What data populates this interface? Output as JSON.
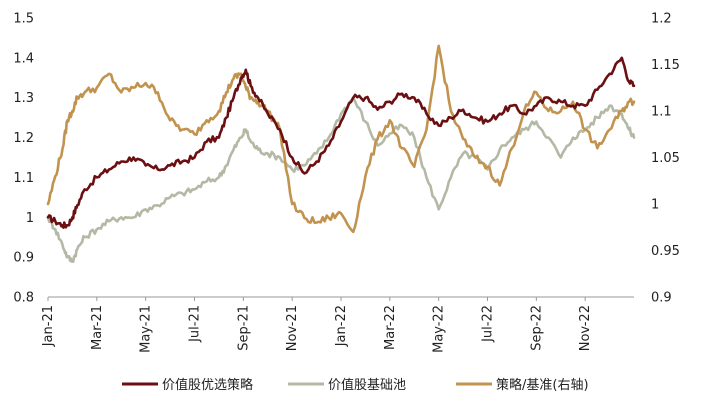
{
  "chart_data": {
    "type": "line",
    "title": "",
    "xlabel": "",
    "ylabel": "",
    "ylim_left": [
      0.8,
      1.5
    ],
    "ylim_right": [
      0.9,
      1.2
    ],
    "yticks_left": [
      "0.8",
      "0.9",
      "1",
      "1.1",
      "1.2",
      "1.3",
      "1.4",
      "1.5"
    ],
    "yticks_right": [
      "0.9",
      "0.95",
      "1",
      "1.05",
      "1.1",
      "1.15",
      "1.2"
    ],
    "x_tick_labels": [
      "Jan-21",
      "Mar-21",
      "May-21",
      "Jul-21",
      "Sep-21",
      "Nov-21",
      "Jan-22",
      "Mar-22",
      "May-22",
      "Jul-22",
      "Sep-22",
      "Nov-22"
    ],
    "x_range_months": [
      0,
      24
    ],
    "grid": false,
    "legend_position": "bottom-center",
    "series": [
      {
        "name": "价值股优选策略",
        "axis": "left",
        "color": "#6b0f12",
        "x": [
          0,
          0.3,
          0.6,
          0.8,
          1.0,
          1.2,
          1.5,
          2.0,
          2.5,
          3.0,
          3.5,
          4.0,
          4.5,
          5.0,
          5.5,
          6.0,
          6.5,
          7.0,
          7.3,
          7.6,
          7.9,
          8.1,
          8.3,
          8.6,
          9.0,
          9.5,
          10.0,
          10.5,
          11.0,
          11.5,
          12.0,
          12.5,
          13.0,
          13.5,
          14.0,
          14.5,
          15.0,
          15.5,
          16.0,
          16.5,
          17.0,
          17.5,
          18.0,
          18.5,
          19.0,
          19.5,
          20.0,
          20.5,
          21.0,
          21.5,
          22.0,
          22.5,
          23.0,
          23.5,
          23.8,
          24.0
        ],
        "values": [
          1.0,
          0.99,
          0.98,
          0.98,
          1.0,
          1.03,
          1.07,
          1.1,
          1.12,
          1.14,
          1.15,
          1.13,
          1.12,
          1.13,
          1.14,
          1.15,
          1.19,
          1.2,
          1.25,
          1.3,
          1.35,
          1.37,
          1.33,
          1.3,
          1.26,
          1.22,
          1.15,
          1.11,
          1.14,
          1.18,
          1.24,
          1.3,
          1.3,
          1.27,
          1.29,
          1.31,
          1.3,
          1.26,
          1.23,
          1.25,
          1.27,
          1.25,
          1.24,
          1.26,
          1.28,
          1.26,
          1.28,
          1.3,
          1.29,
          1.28,
          1.28,
          1.32,
          1.36,
          1.4,
          1.34,
          1.33
        ]
      },
      {
        "name": "价值股基础池",
        "axis": "left",
        "color": "#b4b9a5",
        "x": [
          0,
          0.3,
          0.6,
          0.8,
          1.0,
          1.2,
          1.5,
          2.0,
          2.5,
          3.0,
          3.5,
          4.0,
          4.5,
          5.0,
          5.5,
          6.0,
          6.5,
          7.0,
          7.3,
          7.6,
          7.9,
          8.1,
          8.3,
          8.6,
          9.0,
          9.5,
          10.0,
          10.5,
          11.0,
          11.5,
          12.0,
          12.5,
          13.0,
          13.5,
          14.0,
          14.5,
          15.0,
          15.5,
          16.0,
          16.5,
          17.0,
          17.5,
          18.0,
          18.5,
          19.0,
          19.5,
          20.0,
          20.5,
          21.0,
          21.5,
          22.0,
          22.5,
          23.0,
          23.5,
          23.8,
          24.0
        ],
        "values": [
          1.0,
          0.97,
          0.93,
          0.9,
          0.89,
          0.92,
          0.95,
          0.97,
          0.99,
          1.0,
          1.0,
          1.02,
          1.03,
          1.05,
          1.06,
          1.07,
          1.09,
          1.1,
          1.13,
          1.17,
          1.2,
          1.22,
          1.19,
          1.17,
          1.16,
          1.15,
          1.12,
          1.13,
          1.16,
          1.2,
          1.26,
          1.3,
          1.24,
          1.18,
          1.21,
          1.23,
          1.2,
          1.1,
          1.02,
          1.1,
          1.16,
          1.15,
          1.12,
          1.17,
          1.2,
          1.22,
          1.24,
          1.2,
          1.15,
          1.2,
          1.22,
          1.25,
          1.28,
          1.26,
          1.22,
          1.2
        ]
      },
      {
        "name": "策略/基准(右轴)",
        "axis": "right",
        "color": "#c1934e",
        "x": [
          0,
          0.3,
          0.6,
          0.8,
          1.0,
          1.2,
          1.5,
          2.0,
          2.5,
          3.0,
          3.5,
          4.0,
          4.5,
          5.0,
          5.5,
          6.0,
          6.5,
          7.0,
          7.3,
          7.6,
          7.9,
          8.1,
          8.3,
          8.6,
          9.0,
          9.5,
          10.0,
          10.5,
          11.0,
          11.5,
          12.0,
          12.5,
          13.0,
          13.5,
          14.0,
          14.5,
          15.0,
          15.5,
          16.0,
          16.5,
          17.0,
          17.5,
          18.0,
          18.5,
          19.0,
          19.5,
          20.0,
          20.5,
          21.0,
          21.5,
          22.0,
          22.5,
          23.0,
          23.5,
          23.8,
          24.0
        ],
        "values": [
          1.0,
          1.03,
          1.06,
          1.09,
          1.1,
          1.115,
          1.12,
          1.125,
          1.14,
          1.12,
          1.125,
          1.13,
          1.12,
          1.09,
          1.08,
          1.075,
          1.09,
          1.1,
          1.12,
          1.135,
          1.14,
          1.125,
          1.115,
          1.11,
          1.1,
          1.08,
          1.0,
          0.985,
          0.98,
          0.985,
          0.99,
          0.97,
          1.03,
          1.07,
          1.09,
          1.06,
          1.04,
          1.08,
          1.17,
          1.1,
          1.07,
          1.05,
          1.04,
          1.02,
          1.06,
          1.1,
          1.12,
          1.1,
          1.1,
          1.11,
          1.08,
          1.06,
          1.08,
          1.1,
          1.11,
          1.11
        ]
      }
    ]
  }
}
